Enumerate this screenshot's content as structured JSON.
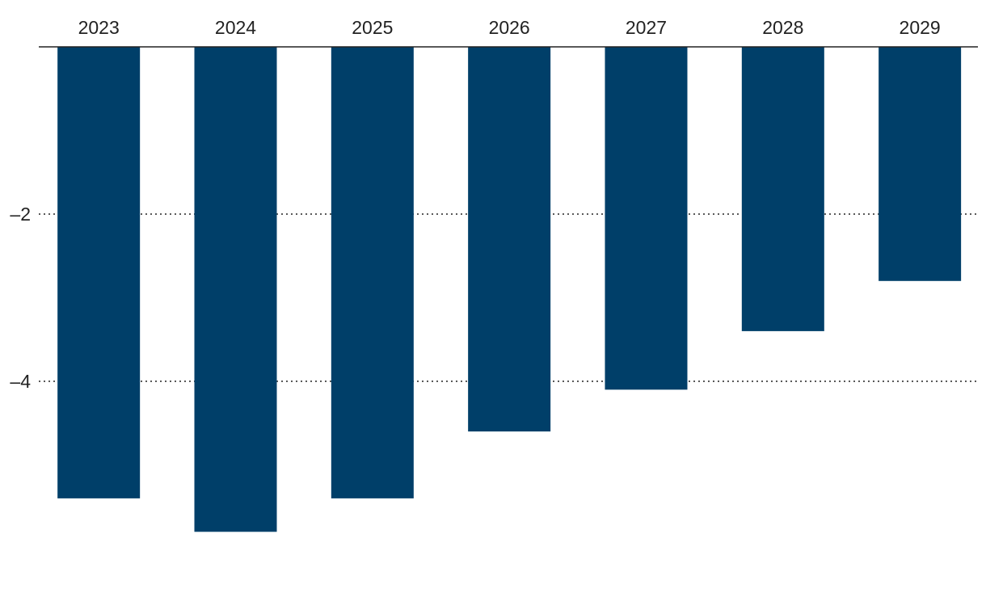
{
  "chart_data": {
    "type": "bar",
    "categories": [
      "2023",
      "2024",
      "2025",
      "2026",
      "2027",
      "2028",
      "2029"
    ],
    "values": [
      -5.4,
      -5.8,
      -5.4,
      -4.6,
      -4.1,
      -3.4,
      -2.8
    ],
    "ylim": [
      -6,
      0
    ],
    "yticks": [
      -2,
      -4
    ],
    "ytick_labels": [
      "–2",
      "–4"
    ],
    "xaxis_position": "top",
    "grid": "dotted",
    "bar_color": "#003f69",
    "title": "",
    "xlabel": "",
    "ylabel": ""
  }
}
